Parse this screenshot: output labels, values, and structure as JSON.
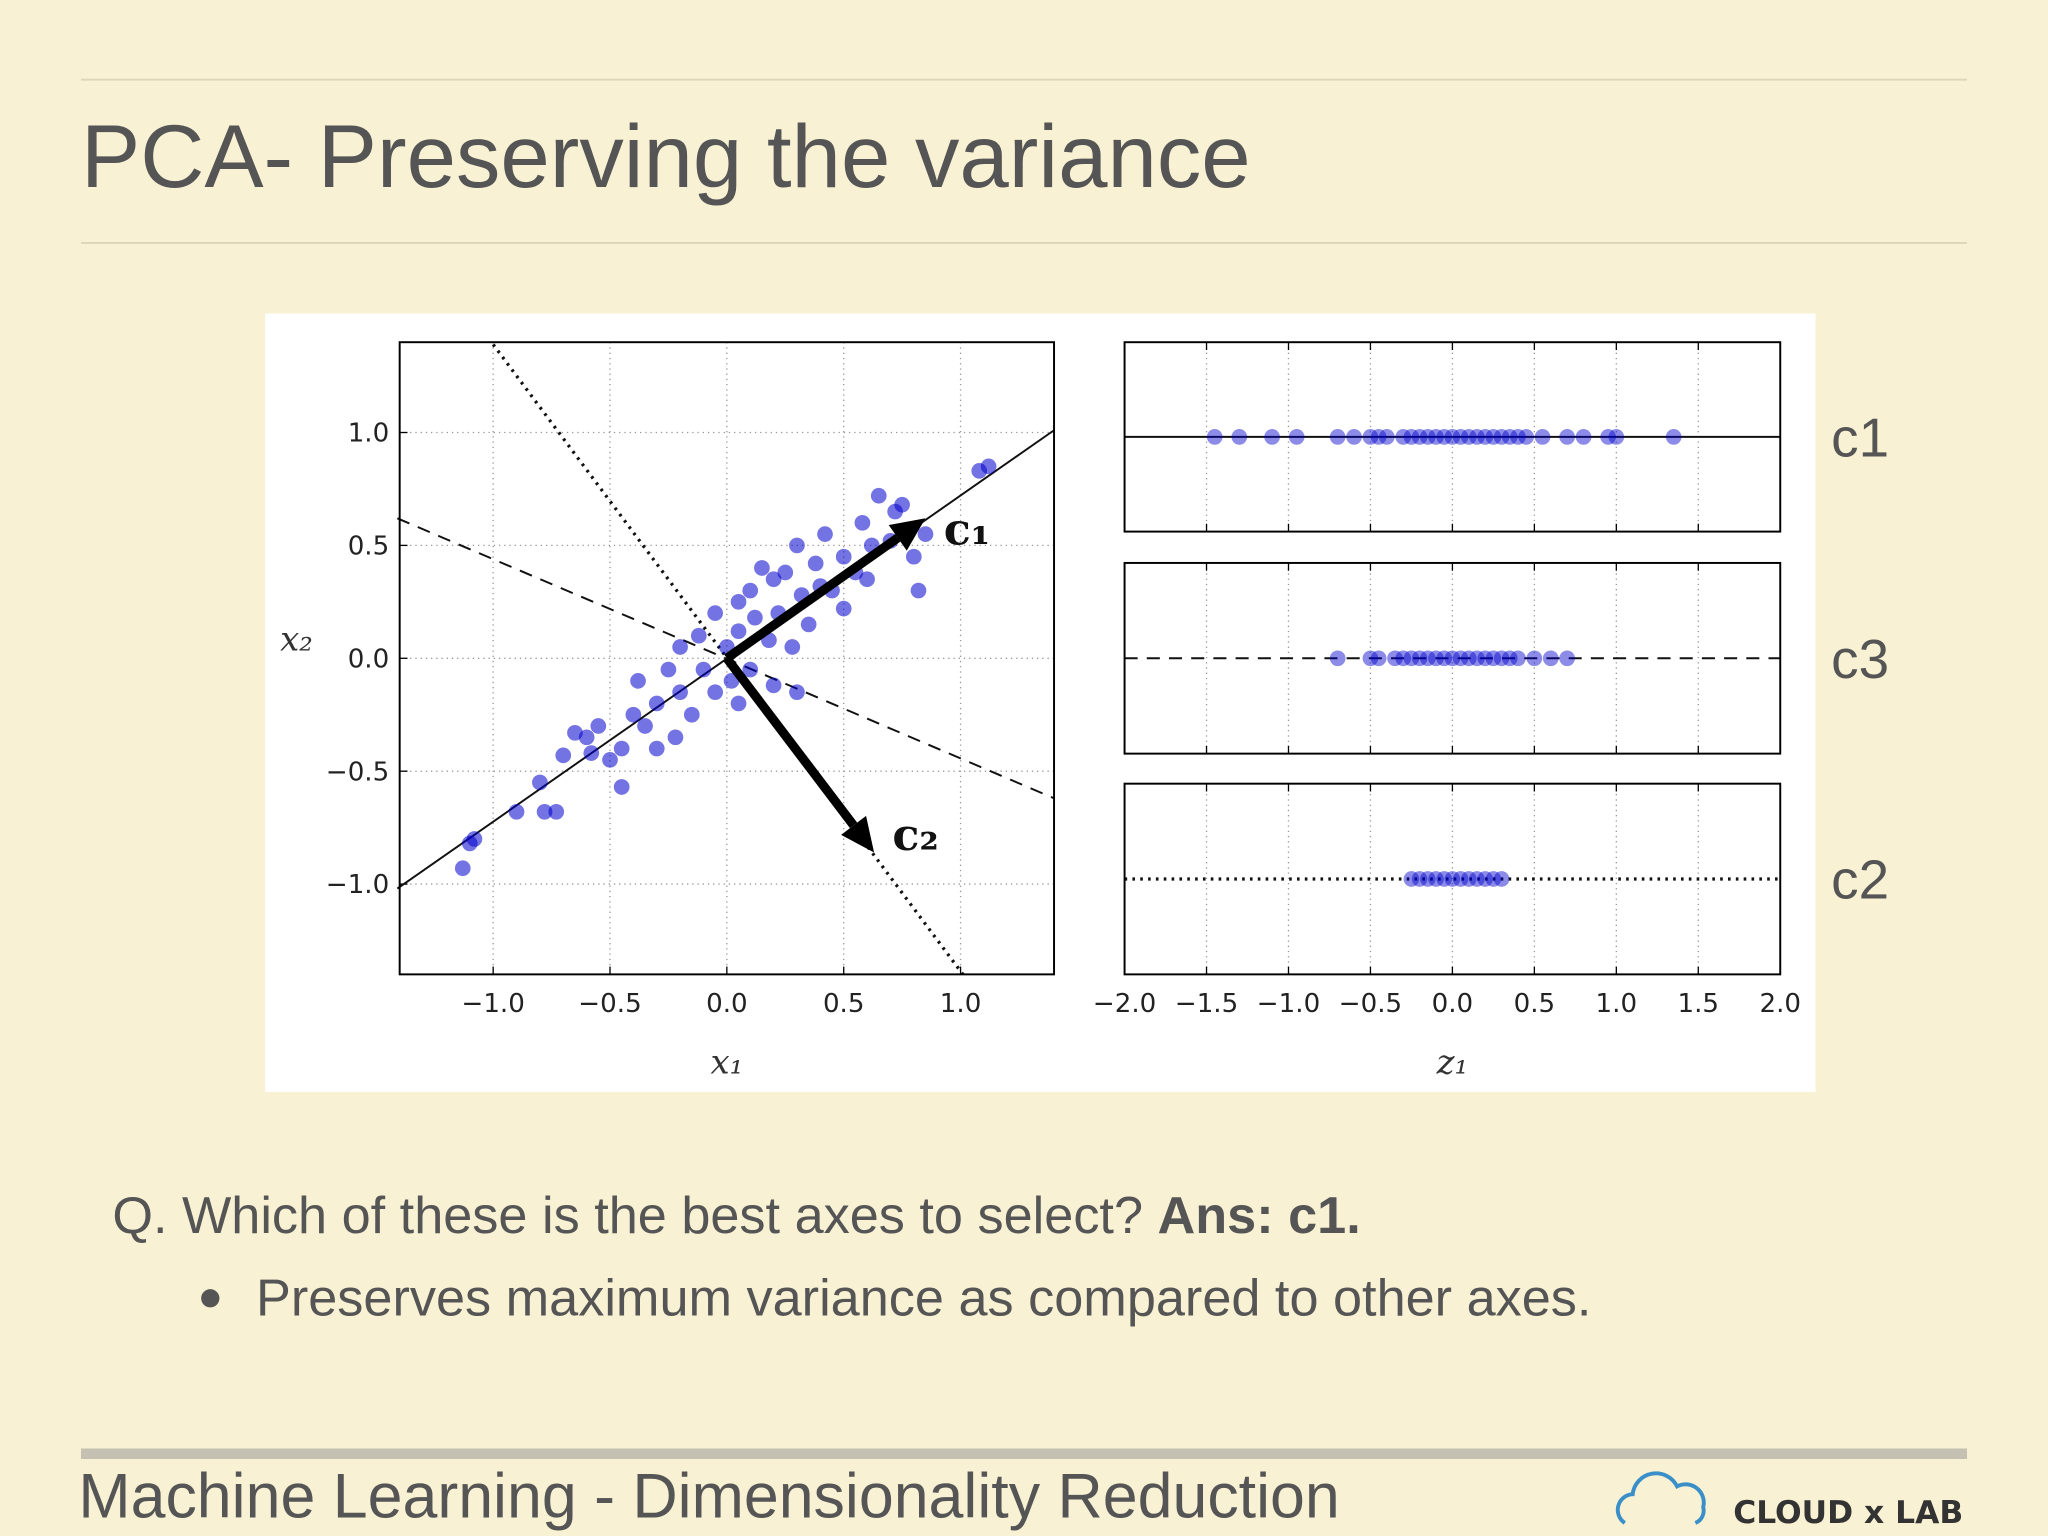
{
  "title": "PCA- Preserving the variance",
  "chart_data": [
    {
      "type": "scatter",
      "xlabel": "x₁",
      "ylabel": "x₂",
      "xlim": [
        -1.4,
        1.4
      ],
      "ylim": [
        -1.4,
        1.4
      ],
      "xticks": [
        {
          "value": -1,
          "label": "−1.0"
        },
        {
          "value": -0.5,
          "label": "−0.5"
        },
        {
          "value": 0,
          "label": "0.0"
        },
        0.5,
        {
          "value": 1,
          "label": "1.0"
        }
      ],
      "yticks": [
        {
          "value": -1,
          "label": "−1.0"
        },
        {
          "value": -0.5,
          "label": "−0.5"
        },
        {
          "value": 0,
          "label": "0.0"
        },
        0.5,
        {
          "value": 1,
          "label": "1.0"
        }
      ],
      "grid": true,
      "color": "#0000cc",
      "x": [
        -1.13,
        -1.08,
        -1.1,
        -0.9,
        -0.8,
        -0.78,
        -0.73,
        -0.7,
        -0.65,
        -0.6,
        -0.55,
        -0.5,
        -0.45,
        -0.45,
        -0.4,
        -0.38,
        -0.35,
        -0.3,
        -0.3,
        -0.25,
        -0.22,
        -0.2,
        -0.2,
        -0.15,
        -0.12,
        -0.1,
        -0.05,
        -0.05,
        0,
        0.02,
        0.05,
        0.05,
        0.1,
        0.1,
        0.12,
        0.15,
        0.18,
        0.2,
        0.22,
        0.25,
        0.28,
        0.3,
        0.32,
        0.35,
        0.38,
        0.4,
        0.42,
        0.45,
        0.5,
        0.5,
        0.55,
        0.58,
        0.6,
        0.62,
        0.65,
        0.7,
        0.72,
        0.75,
        0.8,
        0.82,
        0.85,
        1.08,
        1.12,
        0.3,
        0.05,
        -0.58,
        0.2
      ],
      "y": [
        -0.93,
        -0.8,
        -0.82,
        -0.68,
        -0.55,
        -0.68,
        -0.68,
        -0.43,
        -0.33,
        -0.35,
        -0.3,
        -0.45,
        -0.57,
        -0.4,
        -0.25,
        -0.1,
        -0.3,
        -0.2,
        -0.4,
        -0.05,
        -0.35,
        0.05,
        -0.15,
        -0.25,
        0.1,
        -0.05,
        0.2,
        -0.15,
        0.05,
        -0.1,
        0.25,
        0.12,
        0.3,
        -0.05,
        0.18,
        0.4,
        0.08,
        0.35,
        0.2,
        0.38,
        0.05,
        0.5,
        0.28,
        0.15,
        0.42,
        0.32,
        0.55,
        0.3,
        0.45,
        0.22,
        0.38,
        0.6,
        0.35,
        0.5,
        0.72,
        0.52,
        0.65,
        0.68,
        0.45,
        0.3,
        0.55,
        0.83,
        0.85,
        -0.15,
        -0.2,
        -0.42,
        -0.12
      ],
      "lines": [
        {
          "style": "solid",
          "x": [
            -1.41,
            1.4
          ],
          "y": [
            -1.02,
            1.01
          ]
        },
        {
          "style": "dashed",
          "x": [
            -1.41,
            1.4
          ],
          "y": [
            0.62,
            -0.62
          ]
        },
        {
          "style": "dotted",
          "x": [
            -1.0,
            1.01
          ],
          "y": [
            1.39,
            -1.4
          ]
        }
      ],
      "arrows": [
        {
          "label": "c₁",
          "x": 0.85,
          "y": 0.62
        },
        {
          "label": "c₂",
          "x": 0.63,
          "y": -0.86
        }
      ]
    },
    {
      "type": "strip",
      "label": "c1",
      "style": "solid",
      "color": "#0000cc",
      "xlim": [
        -2,
        2
      ],
      "xticks": [
        -2,
        -1.5,
        -1,
        -0.5,
        0,
        0.5,
        1,
        1.5,
        2
      ],
      "values": [
        -1.45,
        -1.3,
        -1.1,
        -0.95,
        -0.7,
        -0.6,
        -0.5,
        -0.45,
        -0.4,
        -0.3,
        -0.25,
        -0.2,
        -0.15,
        -0.1,
        -0.05,
        0,
        0.05,
        0.1,
        0.15,
        0.2,
        0.25,
        0.3,
        0.35,
        0.4,
        0.45,
        0.55,
        0.7,
        0.8,
        0.95,
        1.0,
        1.35
      ]
    },
    {
      "type": "strip",
      "label": "c3",
      "style": "dashed",
      "color": "#0000cc",
      "xlim": [
        -2,
        2
      ],
      "xticks": [
        -2,
        -1.5,
        -1,
        -0.5,
        0,
        0.5,
        1,
        1.5,
        2
      ],
      "values": [
        -0.7,
        -0.5,
        -0.45,
        -0.35,
        -0.3,
        -0.25,
        -0.2,
        -0.15,
        -0.1,
        -0.05,
        0,
        0.05,
        0.1,
        0.15,
        0.2,
        0.25,
        0.3,
        0.35,
        0.4,
        0.5,
        0.6,
        0.7
      ]
    },
    {
      "type": "strip",
      "label": "c2",
      "style": "dotted",
      "color": "#0000cc",
      "xlim": [
        -2,
        2
      ],
      "xlabel": "z₁",
      "xticks": [
        {
          "value": -2,
          "label": "−2.0"
        },
        {
          "value": -1.5,
          "label": "−1.5"
        },
        {
          "value": -1,
          "label": "−1.0"
        },
        {
          "value": -0.5,
          "label": "−0.5"
        },
        {
          "value": 0,
          "label": "0.0"
        },
        0.5,
        {
          "value": 1,
          "label": "1.0"
        },
        1.5,
        {
          "value": 2,
          "label": "2.0"
        }
      ],
      "values": [
        -0.25,
        -0.2,
        -0.15,
        -0.1,
        -0.05,
        0,
        0.05,
        0.1,
        0.15,
        0.2,
        0.25,
        0.3
      ]
    }
  ],
  "question": "Q. Which of these is the best axes to select?",
  "answer": "Ans: c1.",
  "bullet": "Preserves maximum variance as compared to other axes.",
  "footer": "Machine Learning - Dimensionality Reduction",
  "logo": "CLOUD x LAB"
}
